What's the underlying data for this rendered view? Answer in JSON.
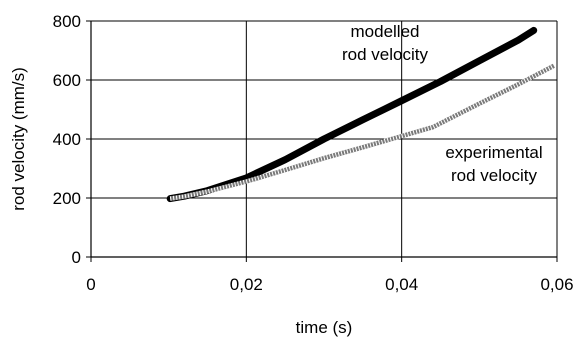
{
  "chart_data": {
    "type": "line",
    "xlabel": "time (s)",
    "ylabel": "rod velocity (mm/s)",
    "xlim": [
      0,
      0.06
    ],
    "ylim": [
      0,
      800
    ],
    "x_ticks": [
      "0",
      "0,02",
      "0,04",
      "0,06"
    ],
    "y_ticks": [
      "0",
      "200",
      "400",
      "600",
      "800"
    ],
    "grid": true,
    "series": [
      {
        "name": "modelled rod velocity",
        "color": "#000000",
        "style": "thick-solid",
        "x": [
          0.0102,
          0.012,
          0.015,
          0.02,
          0.025,
          0.03,
          0.035,
          0.04,
          0.045,
          0.05,
          0.055,
          0.057
        ],
        "y": [
          198,
          206,
          225,
          268,
          330,
          400,
          465,
          530,
          595,
          665,
          735,
          768
        ]
      },
      {
        "name": "experimental rod velocity",
        "color": "#7a7a7a",
        "style": "hatched",
        "x": [
          0.0102,
          0.012,
          0.015,
          0.02,
          0.025,
          0.03,
          0.035,
          0.04,
          0.044,
          0.05,
          0.055,
          0.0596
        ],
        "y": [
          198,
          205,
          222,
          256,
          295,
          335,
          372,
          410,
          440,
          520,
          585,
          648
        ]
      }
    ],
    "annotations": [
      {
        "series": 0,
        "lines": [
          "modelled",
          "rod velocity"
        ]
      },
      {
        "series": 1,
        "lines": [
          "experimental",
          "rod velocity"
        ]
      }
    ]
  }
}
